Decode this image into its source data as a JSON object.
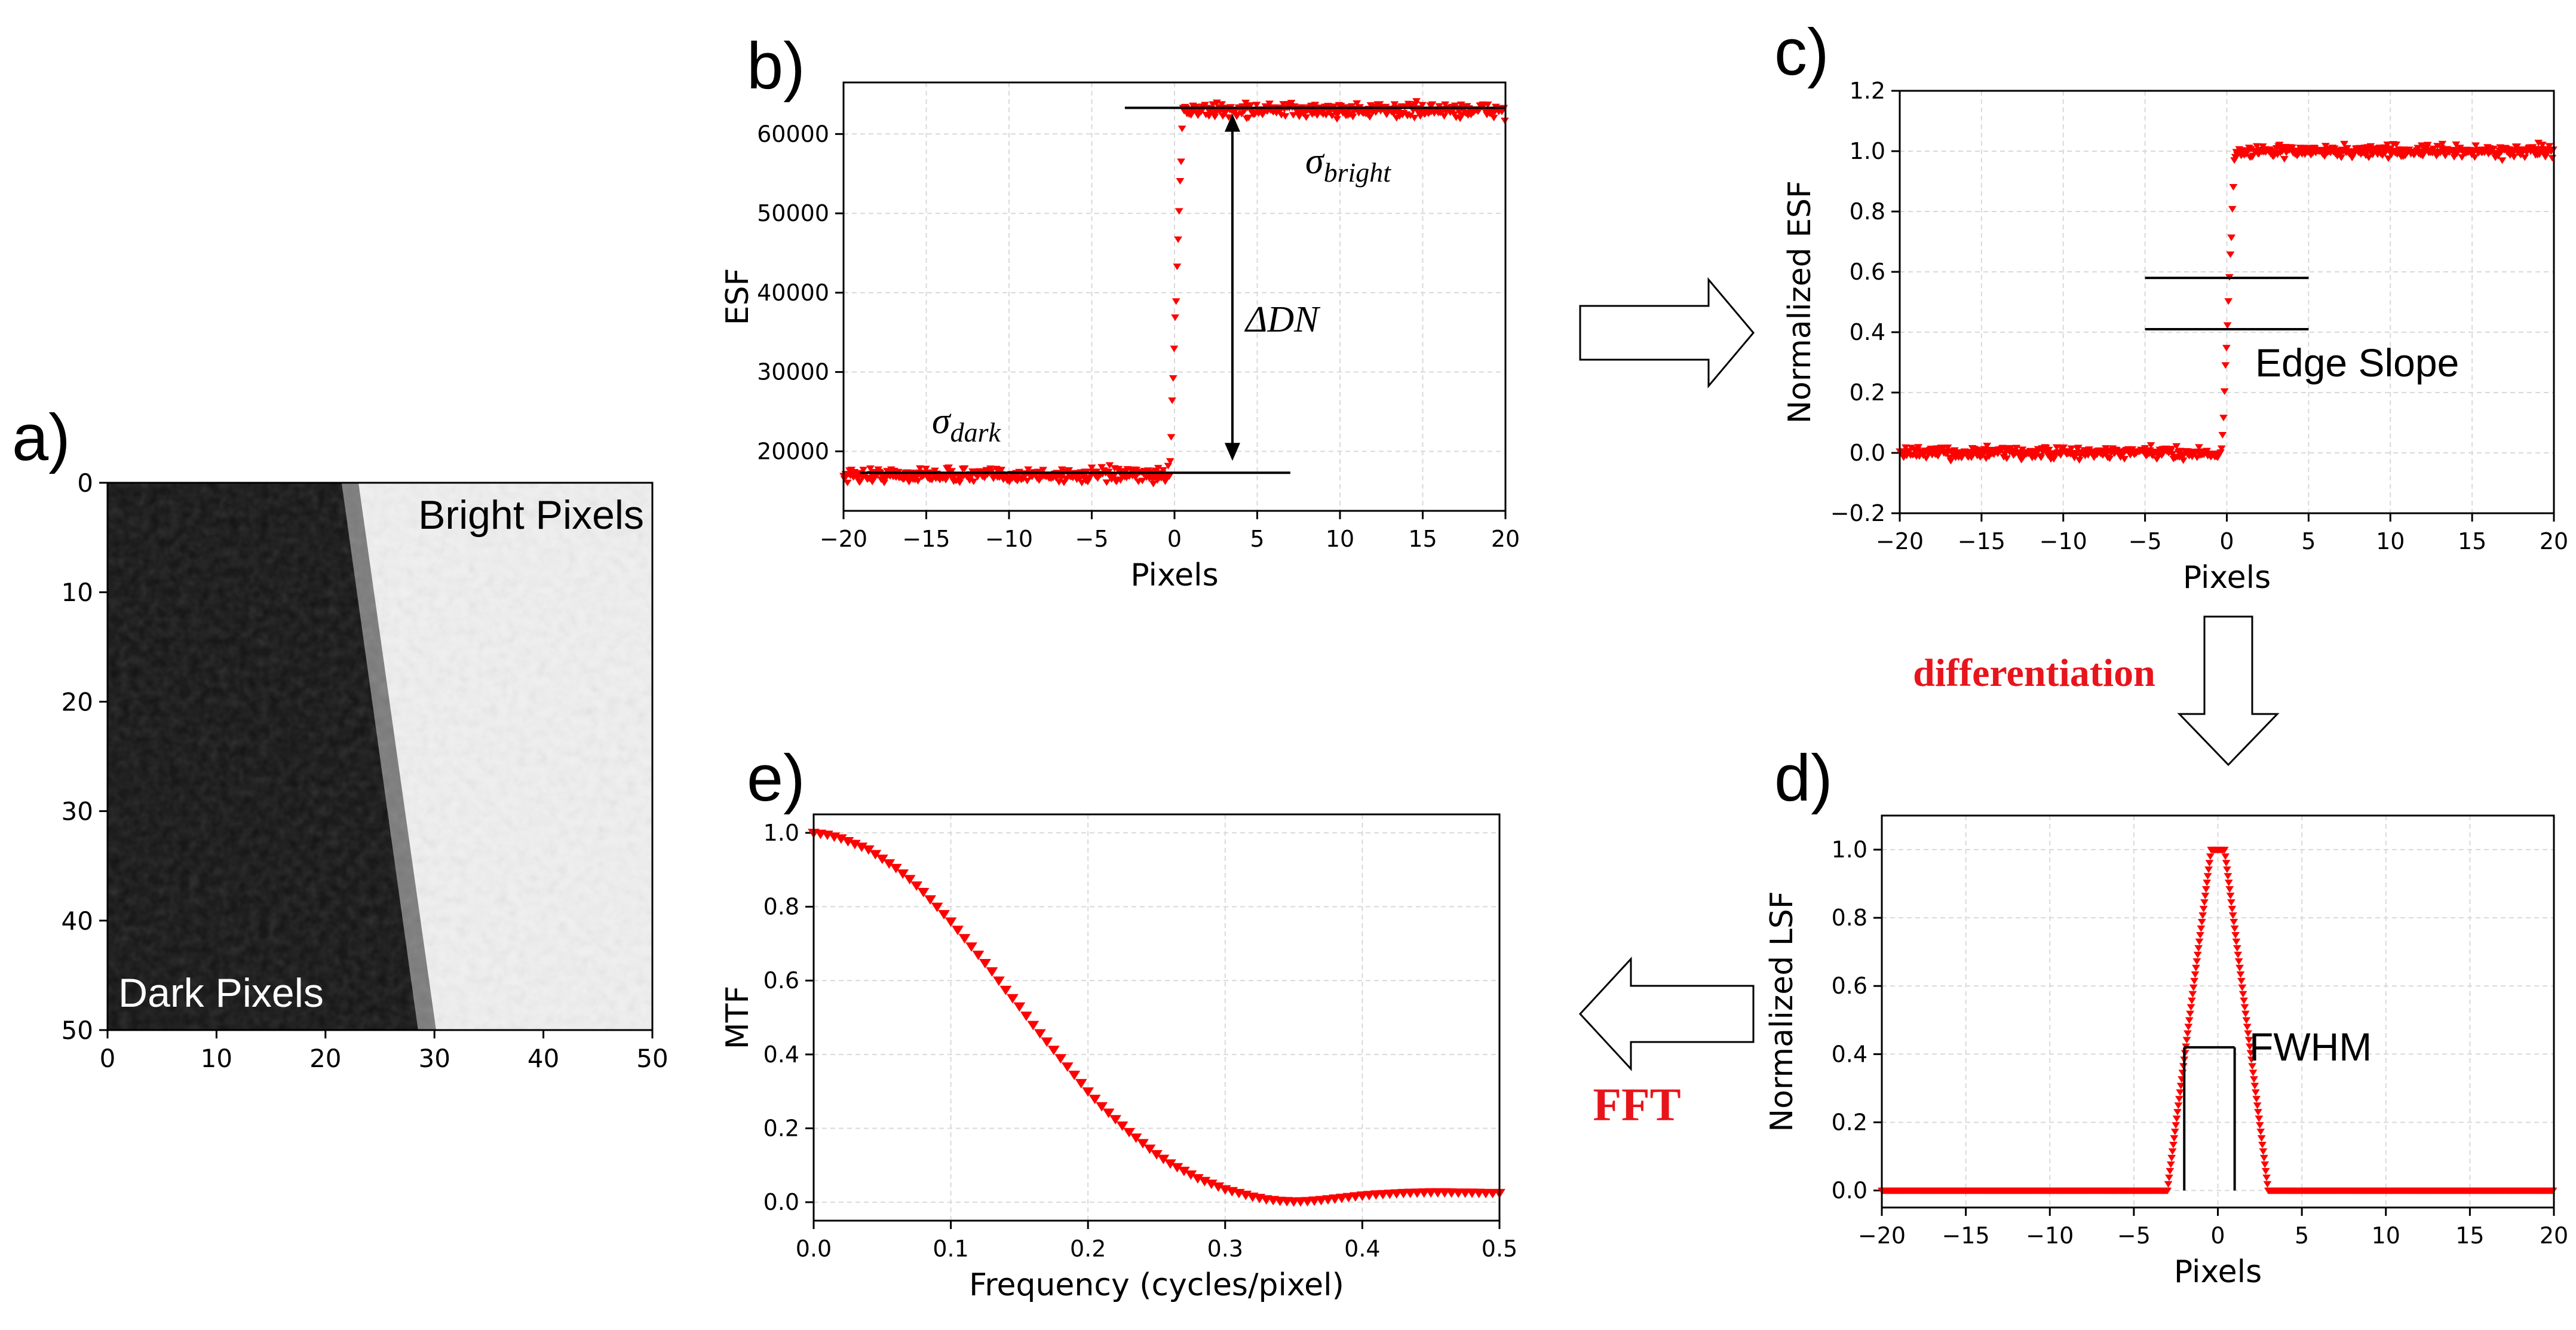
{
  "colors": {
    "data": "#ff0000",
    "axis": "#000000",
    "grid": "#d9d9d9",
    "label_red": "#e8141b"
  },
  "panels": {
    "a": {
      "label": "a)",
      "bright_text": "Bright Pixels",
      "dark_text": "Dark Pixels",
      "xticks": [
        "0",
        "10",
        "20",
        "30",
        "40",
        "50"
      ],
      "yticks": [
        "0",
        "10",
        "20",
        "30",
        "40",
        "50"
      ]
    },
    "b": {
      "label": "b)",
      "sigma_dark": "σ",
      "sigma_dark_sub": "dark",
      "sigma_bright": "σ",
      "sigma_bright_sub": "bright",
      "delta": "ΔDN"
    },
    "c": {
      "label": "c)",
      "edge_slope": "Edge Slope"
    },
    "d": {
      "label": "d)",
      "fwhm": "FWHM"
    },
    "e": {
      "label": "e)"
    }
  },
  "flow": {
    "differentiation": "differentiation",
    "fft": "FFT"
  },
  "chart_data": [
    {
      "id": "b",
      "type": "scatter",
      "title": "",
      "xlabel": "Pixels",
      "ylabel": "ESF",
      "xlim": [
        -20,
        20
      ],
      "ylim": [
        12500,
        66500
      ],
      "xticks": [
        -20,
        -15,
        -10,
        -5,
        0,
        5,
        10,
        15,
        20
      ],
      "xticklabels": [
        "−20",
        "−15",
        "−10",
        "−5",
        "0",
        "5",
        "10",
        "15",
        "20"
      ],
      "yticks": [
        20000,
        30000,
        40000,
        50000,
        60000
      ],
      "yticklabels": [
        "20000",
        "30000",
        "40000",
        "50000",
        "60000"
      ],
      "series": [
        {
          "name": "ESF",
          "marker": "tri_down",
          "low": 17000,
          "high": 63000,
          "edge_start": -0.3,
          "edge_end": 0.5,
          "noise": 900
        }
      ],
      "annotations": {
        "dark_line": [
          -19,
          7,
          17300
        ],
        "bright_line": [
          -3,
          20,
          63300
        ],
        "arrow_x": 3.5
      }
    },
    {
      "id": "c",
      "type": "scatter",
      "title": "",
      "xlabel": "Pixels",
      "ylabel": "Normalized ESF",
      "xlim": [
        -20,
        20
      ],
      "ylim": [
        -0.2,
        1.2
      ],
      "xticks": [
        -20,
        -15,
        -10,
        -5,
        0,
        5,
        10,
        15,
        20
      ],
      "xticklabels": [
        "−20",
        "−15",
        "−10",
        "−5",
        "0",
        "5",
        "10",
        "15",
        "20"
      ],
      "yticks": [
        -0.2,
        0.0,
        0.2,
        0.4,
        0.6,
        0.8,
        1.0,
        1.2
      ],
      "yticklabels": [
        "−0.2",
        "0.0",
        "0.2",
        "0.4",
        "0.6",
        "0.8",
        "1.0",
        "1.2"
      ],
      "series": [
        {
          "name": "Normalized ESF",
          "marker": "tri_down",
          "low": 0.0,
          "high": 1.0,
          "edge_start": -0.3,
          "edge_end": 0.5,
          "noise": 0.02
        }
      ],
      "annotations": {
        "slope_lines": [
          [
            -5,
            5,
            0.58
          ],
          [
            -5,
            5,
            0.41
          ]
        ]
      }
    },
    {
      "id": "d",
      "type": "scatter",
      "title": "",
      "xlabel": "Pixels",
      "ylabel": "Normalized LSF",
      "xlim": [
        -20,
        20
      ],
      "ylim": [
        -0.05,
        1.1
      ],
      "xticks": [
        -20,
        -15,
        -10,
        -5,
        0,
        5,
        10,
        15,
        20
      ],
      "xticklabels": [
        "−20",
        "−15",
        "−10",
        "−5",
        "0",
        "5",
        "10",
        "15",
        "20"
      ],
      "yticks": [
        0.0,
        0.2,
        0.4,
        0.6,
        0.8,
        1.0
      ],
      "yticklabels": [
        "0.0",
        "0.2",
        "0.4",
        "0.6",
        "0.8",
        "1.0"
      ],
      "series": [
        {
          "name": "Normalized LSF",
          "marker": "tri_down",
          "peak_center": 0.0,
          "plateau_halfwidth": 0.4,
          "base_halfwidth": 3.0
        }
      ],
      "annotations": {
        "fwhm_level": 0.42,
        "fwhm_x": [
          -2.0,
          1.0
        ]
      }
    },
    {
      "id": "e",
      "type": "scatter",
      "title": "",
      "xlabel": "Frequency (cycles/pixel)",
      "ylabel": "MTF",
      "xlim": [
        0,
        0.5
      ],
      "ylim": [
        -0.05,
        1.05
      ],
      "xticks": [
        0.0,
        0.1,
        0.2,
        0.3,
        0.4,
        0.5
      ],
      "xticklabels": [
        "0.0",
        "0.1",
        "0.2",
        "0.3",
        "0.4",
        "0.5"
      ],
      "yticks": [
        0.0,
        0.2,
        0.4,
        0.6,
        0.8,
        1.0
      ],
      "yticklabels": [
        "0.0",
        "0.2",
        "0.4",
        "0.6",
        "0.8",
        "1.0"
      ],
      "series": [
        {
          "name": "MTF",
          "marker": "tri_down",
          "x": [
            0.0,
            0.01,
            0.02,
            0.03,
            0.04,
            0.05,
            0.06,
            0.07,
            0.08,
            0.09,
            0.1,
            0.11,
            0.12,
            0.13,
            0.14,
            0.15,
            0.16,
            0.17,
            0.18,
            0.19,
            0.2,
            0.21,
            0.22,
            0.23,
            0.24,
            0.25,
            0.26,
            0.27,
            0.28,
            0.29,
            0.3,
            0.31,
            0.32,
            0.33,
            0.34,
            0.35,
            0.36,
            0.37,
            0.38,
            0.39,
            0.4,
            0.41,
            0.42,
            0.43,
            0.44,
            0.45,
            0.46,
            0.47,
            0.48,
            0.49,
            0.5
          ],
          "y": [
            1.0,
            0.995,
            0.985,
            0.97,
            0.955,
            0.93,
            0.905,
            0.875,
            0.84,
            0.8,
            0.76,
            0.715,
            0.67,
            0.625,
            0.575,
            0.53,
            0.48,
            0.435,
            0.39,
            0.345,
            0.3,
            0.26,
            0.225,
            0.19,
            0.16,
            0.13,
            0.105,
            0.085,
            0.065,
            0.05,
            0.035,
            0.025,
            0.015,
            0.008,
            0.004,
            0.002,
            0.003,
            0.006,
            0.01,
            0.014,
            0.018,
            0.021,
            0.023,
            0.025,
            0.026,
            0.027,
            0.027,
            0.026,
            0.026,
            0.025,
            0.025
          ]
        }
      ]
    }
  ]
}
